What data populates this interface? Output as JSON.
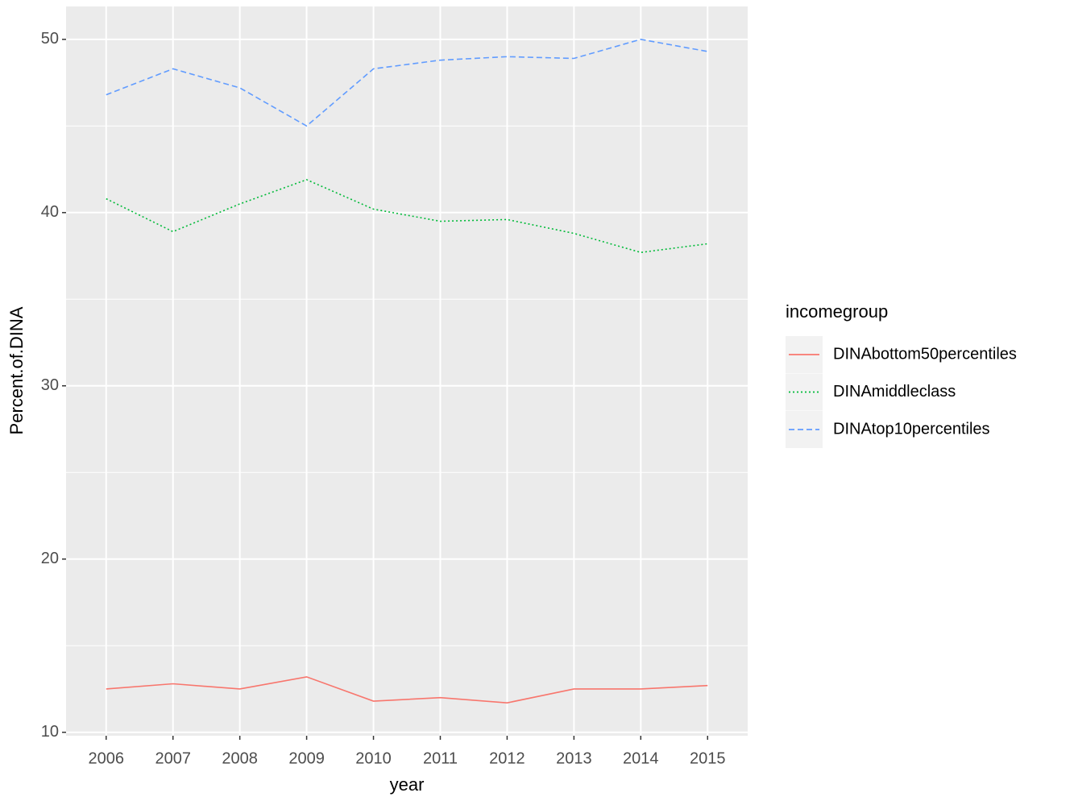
{
  "chart_data": {
    "type": "line",
    "x_label": "year",
    "y_label": "Percent.of.DINA",
    "categories": [
      "2006",
      "2007",
      "2008",
      "2009",
      "2010",
      "2011",
      "2012",
      "2013",
      "2014",
      "2015"
    ],
    "ylim": [
      9.8,
      51.9
    ],
    "yticks": [
      10,
      20,
      30,
      40,
      50
    ],
    "yminorticks": [
      15,
      25,
      35,
      45
    ],
    "grid": true,
    "legend_title": "incomegroup",
    "legend_position": "right",
    "series": [
      {
        "name": "DINAbottom50percentiles",
        "color": "#F8766D",
        "dash": "solid",
        "values": [
          12.5,
          12.8,
          12.5,
          13.2,
          11.8,
          12.0,
          11.7,
          12.5,
          12.5,
          12.7
        ]
      },
      {
        "name": "DINAmiddleclass",
        "color": "#00BA38",
        "dash": "dotted",
        "values": [
          40.8,
          38.9,
          40.5,
          41.9,
          40.2,
          39.5,
          39.6,
          38.8,
          37.7,
          38.2
        ]
      },
      {
        "name": "DINAtop10percentiles",
        "color": "#619CFF",
        "dash": "dashed",
        "values": [
          46.8,
          48.3,
          47.2,
          45.0,
          48.3,
          48.8,
          49.0,
          48.9,
          50.0,
          49.3
        ]
      }
    ]
  }
}
